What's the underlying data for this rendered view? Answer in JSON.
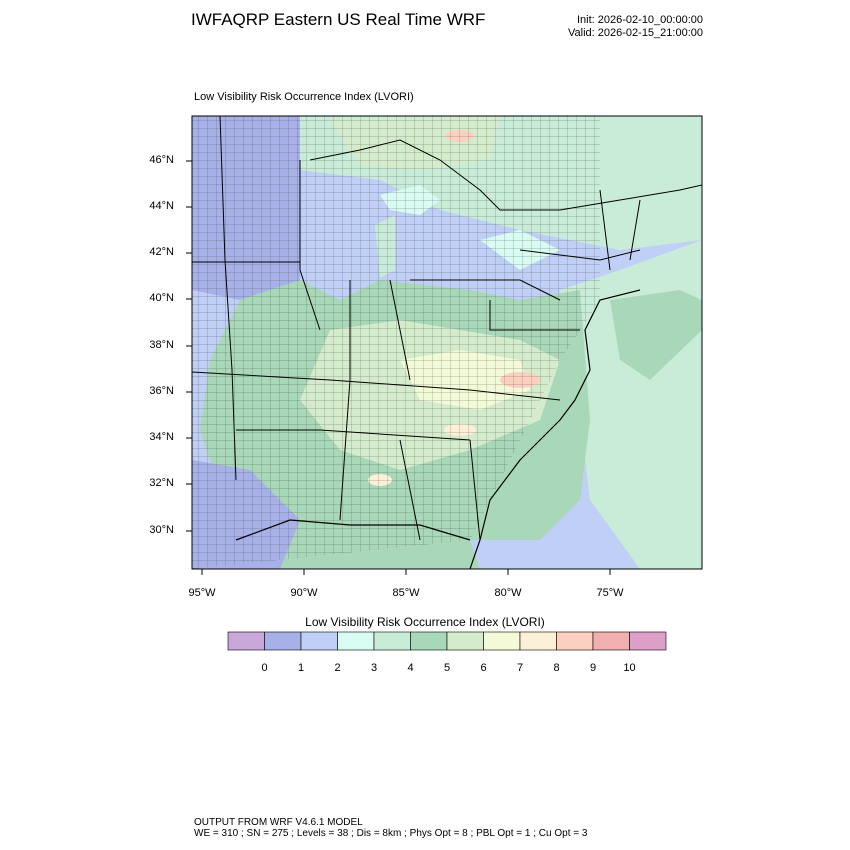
{
  "header": {
    "title": "IWFAQRP Eastern US Real Time WRF",
    "init": "Init: 2026-02-10_00:00:00",
    "valid": "Valid: 2026-02-15_21:00:00"
  },
  "plot": {
    "title": "Low Visibility Risk Occurrence Index   (LVORI)",
    "lat_labels": [
      "46°N",
      "44°N",
      "42°N",
      "40°N",
      "38°N",
      "36°N",
      "34°N",
      "32°N",
      "30°N"
    ],
    "lon_labels": [
      "95°W",
      "90°W",
      "85°W",
      "80°W",
      "75°W"
    ]
  },
  "colorbar": {
    "title": "Low Visibility Risk Occurrence Index  (LVORI)",
    "tick_labels": [
      "0",
      "1",
      "2",
      "3",
      "4",
      "5",
      "6",
      "7",
      "8",
      "9",
      "10"
    ],
    "colors": [
      "#c8a8d8",
      "#a8b0e8",
      "#c0cff5",
      "#d8fcf2",
      "#c8ecd8",
      "#a8d8b8",
      "#d4eccc",
      "#f2fad8",
      "#fdf0d8",
      "#fcd0c0",
      "#f0b0b0",
      "#dca0c8"
    ]
  },
  "footer": {
    "line1": "OUTPUT FROM WRF V4.6.1 MODEL",
    "line2": "WE = 310 ; SN = 275 ; Levels = 38 ; Dis = 8km ; Phys Opt = 8 ; PBL Opt = 1 ; Cu Opt = 3"
  }
}
